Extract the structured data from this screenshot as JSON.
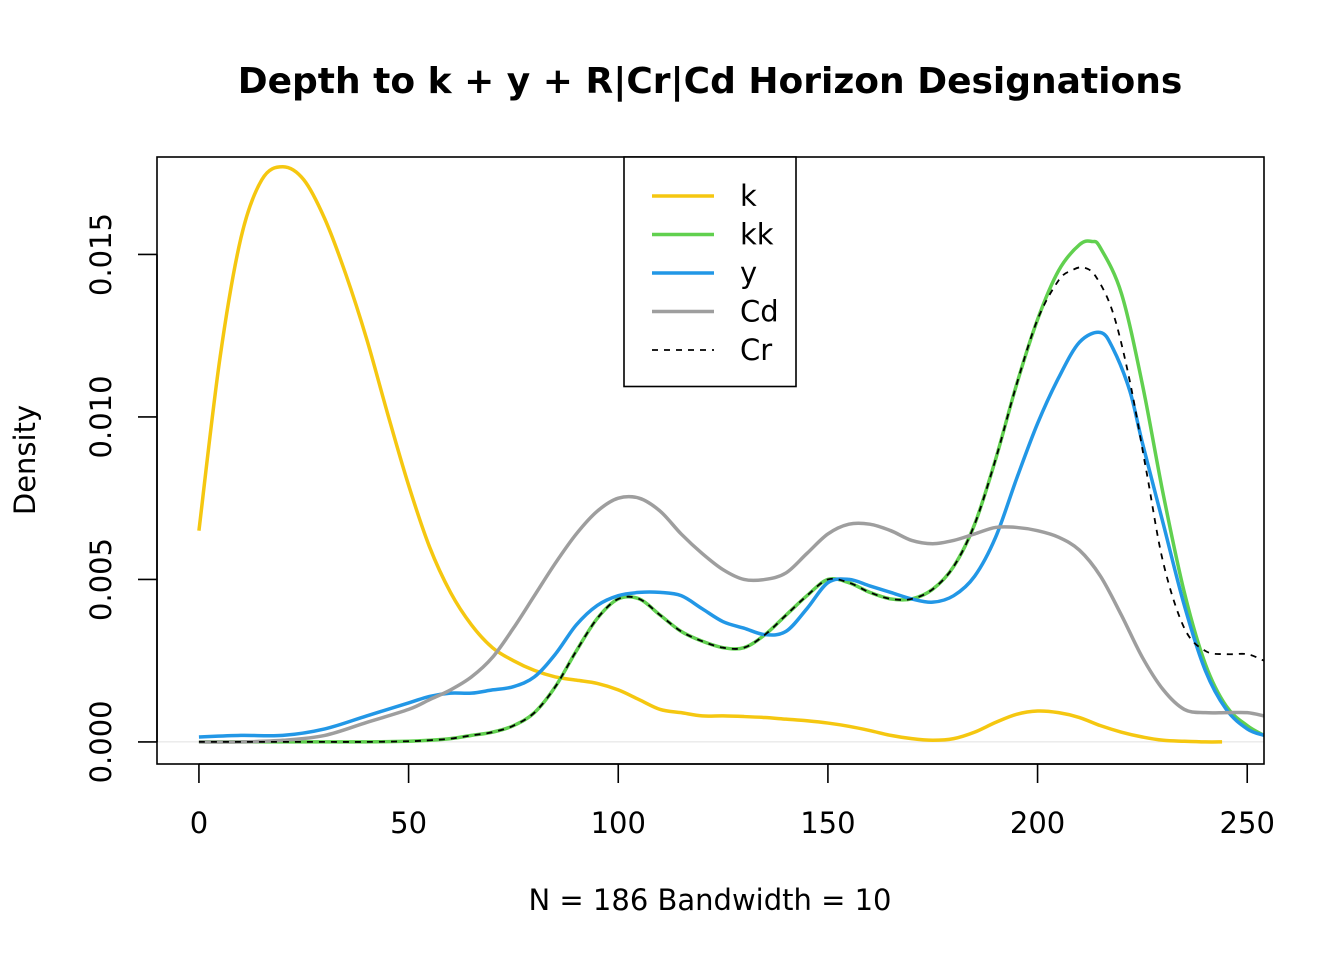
{
  "chart_data": {
    "type": "line",
    "title": "Depth to k + y + R|Cr|Cd Horizon Designations",
    "xlabel": "N = 186   Bandwidth = 10",
    "ylabel": "Density",
    "xlim": [
      -10,
      254
    ],
    "ylim": [
      -0.00068,
      0.018
    ],
    "x_ticks": [
      0,
      50,
      100,
      150,
      200,
      250
    ],
    "x_tick_labels": [
      "0",
      "50",
      "100",
      "150",
      "200",
      "250"
    ],
    "y_ticks": [
      0.0,
      0.005,
      0.01,
      0.015
    ],
    "y_tick_labels": [
      "0.000",
      "0.005",
      "0.010",
      "0.015"
    ],
    "legend_position": "top-center",
    "grid": false,
    "zero_line": true,
    "series": [
      {
        "name": "k",
        "color": "#F5C710",
        "dash": false,
        "x": [
          0,
          5,
          10,
          15,
          20,
          25,
          30,
          35,
          40,
          45,
          50,
          55,
          60,
          65,
          70,
          75,
          80,
          85,
          90,
          95,
          100,
          105,
          110,
          115,
          120,
          125,
          130,
          135,
          140,
          145,
          150,
          155,
          160,
          165,
          170,
          175,
          180,
          185,
          190,
          195,
          200,
          205,
          210,
          215,
          220,
          225,
          230,
          235,
          240,
          244
        ],
        "y": [
          0.0065,
          0.0118,
          0.0155,
          0.0173,
          0.0177,
          0.0173,
          0.0161,
          0.0144,
          0.0124,
          0.0101,
          0.0079,
          0.006,
          0.0046,
          0.0036,
          0.0029,
          0.0025,
          0.0022,
          0.002,
          0.0019,
          0.0018,
          0.0016,
          0.0013,
          0.001,
          0.0009,
          0.0008,
          0.0008,
          0.00078,
          0.00075,
          0.0007,
          0.00065,
          0.00058,
          0.00048,
          0.00035,
          0.0002,
          0.0001,
          5e-05,
          0.0001,
          0.0003,
          0.0006,
          0.00085,
          0.00095,
          0.0009,
          0.00075,
          0.0005,
          0.0003,
          0.00015,
          5e-05,
          2e-05,
          0.0,
          0.0
        ]
      },
      {
        "name": "kk",
        "color": "#61D04F",
        "dash": false,
        "x": [
          0,
          10,
          20,
          30,
          40,
          50,
          55,
          60,
          65,
          70,
          75,
          80,
          85,
          90,
          95,
          100,
          105,
          110,
          115,
          120,
          125,
          130,
          135,
          140,
          145,
          150,
          155,
          160,
          165,
          170,
          175,
          180,
          185,
          190,
          195,
          200,
          205,
          210,
          213,
          215,
          220,
          225,
          230,
          235,
          240,
          245,
          250,
          254
        ],
        "y": [
          0.0,
          0.0,
          0.0,
          0.0,
          0.0,
          2e-05,
          5e-05,
          0.0001,
          0.0002,
          0.0003,
          0.0005,
          0.0009,
          0.0017,
          0.0028,
          0.0038,
          0.0044,
          0.0044,
          0.0039,
          0.0034,
          0.0031,
          0.0029,
          0.0029,
          0.0033,
          0.0039,
          0.0045,
          0.005,
          0.0049,
          0.0046,
          0.0044,
          0.0044,
          0.0047,
          0.0054,
          0.0067,
          0.0087,
          0.011,
          0.013,
          0.0145,
          0.0153,
          0.0154,
          0.0152,
          0.0138,
          0.011,
          0.0076,
          0.0046,
          0.0024,
          0.0011,
          0.0005,
          0.0002
        ]
      },
      {
        "name": "y",
        "color": "#2297E6",
        "dash": false,
        "x": [
          0,
          10,
          20,
          30,
          40,
          50,
          55,
          60,
          65,
          70,
          75,
          80,
          85,
          90,
          95,
          100,
          105,
          110,
          115,
          120,
          125,
          130,
          135,
          140,
          145,
          150,
          155,
          160,
          165,
          170,
          175,
          180,
          185,
          190,
          195,
          200,
          205,
          210,
          215,
          218,
          222,
          225,
          230,
          235,
          240,
          245,
          250,
          254
        ],
        "y": [
          0.00015,
          0.0002,
          0.0002,
          0.0004,
          0.0008,
          0.0012,
          0.0014,
          0.0015,
          0.0015,
          0.0016,
          0.0017,
          0.002,
          0.0027,
          0.0036,
          0.0042,
          0.0045,
          0.0046,
          0.0046,
          0.0045,
          0.0041,
          0.0037,
          0.0035,
          0.0033,
          0.0034,
          0.0041,
          0.0049,
          0.005,
          0.0048,
          0.0046,
          0.0044,
          0.0043,
          0.0045,
          0.0051,
          0.0063,
          0.0081,
          0.0098,
          0.0112,
          0.0123,
          0.0126,
          0.0121,
          0.0108,
          0.0092,
          0.0067,
          0.0042,
          0.0022,
          0.001,
          0.0004,
          0.0002
        ]
      },
      {
        "name": "Cd",
        "color": "#9E9E9E",
        "dash": false,
        "x": [
          0,
          10,
          20,
          30,
          40,
          50,
          55,
          60,
          65,
          70,
          75,
          80,
          85,
          90,
          95,
          100,
          105,
          110,
          115,
          120,
          125,
          130,
          135,
          140,
          145,
          150,
          155,
          160,
          165,
          170,
          175,
          180,
          185,
          190,
          195,
          200,
          205,
          210,
          215,
          220,
          225,
          230,
          235,
          240,
          245,
          250,
          254
        ],
        "y": [
          0.0,
          0.0,
          5e-05,
          0.0002,
          0.0006,
          0.001,
          0.0013,
          0.0016,
          0.002,
          0.0026,
          0.0035,
          0.0045,
          0.0055,
          0.0064,
          0.0071,
          0.0075,
          0.0075,
          0.0071,
          0.0064,
          0.0058,
          0.0053,
          0.005,
          0.005,
          0.0052,
          0.0058,
          0.0064,
          0.0067,
          0.0067,
          0.0065,
          0.0062,
          0.0061,
          0.0062,
          0.0064,
          0.0066,
          0.0066,
          0.0065,
          0.0063,
          0.0059,
          0.0051,
          0.0039,
          0.0026,
          0.0016,
          0.001,
          0.0009,
          0.0009,
          0.0009,
          0.0008
        ]
      },
      {
        "name": "Cr",
        "color": "#000000",
        "dash": true,
        "x": [
          0,
          10,
          20,
          30,
          40,
          50,
          55,
          60,
          65,
          70,
          75,
          80,
          85,
          90,
          95,
          100,
          105,
          110,
          115,
          120,
          125,
          130,
          135,
          140,
          145,
          150,
          155,
          160,
          165,
          170,
          175,
          180,
          185,
          190,
          195,
          200,
          205,
          208,
          211,
          214,
          218,
          222,
          226,
          230,
          235,
          240,
          245,
          250,
          254
        ],
        "y": [
          0.0,
          0.0,
          0.0,
          0.0,
          0.0,
          2e-05,
          5e-05,
          0.0001,
          0.0002,
          0.0003,
          0.0005,
          0.0009,
          0.0017,
          0.0028,
          0.0038,
          0.0044,
          0.0044,
          0.0039,
          0.0034,
          0.0031,
          0.0029,
          0.0029,
          0.0033,
          0.0039,
          0.0045,
          0.005,
          0.0049,
          0.0046,
          0.0044,
          0.0044,
          0.0047,
          0.0054,
          0.0067,
          0.0087,
          0.011,
          0.013,
          0.0142,
          0.0145,
          0.0146,
          0.0143,
          0.0132,
          0.0111,
          0.0083,
          0.0055,
          0.0035,
          0.0028,
          0.0027,
          0.0027,
          0.0025
        ]
      }
    ]
  }
}
